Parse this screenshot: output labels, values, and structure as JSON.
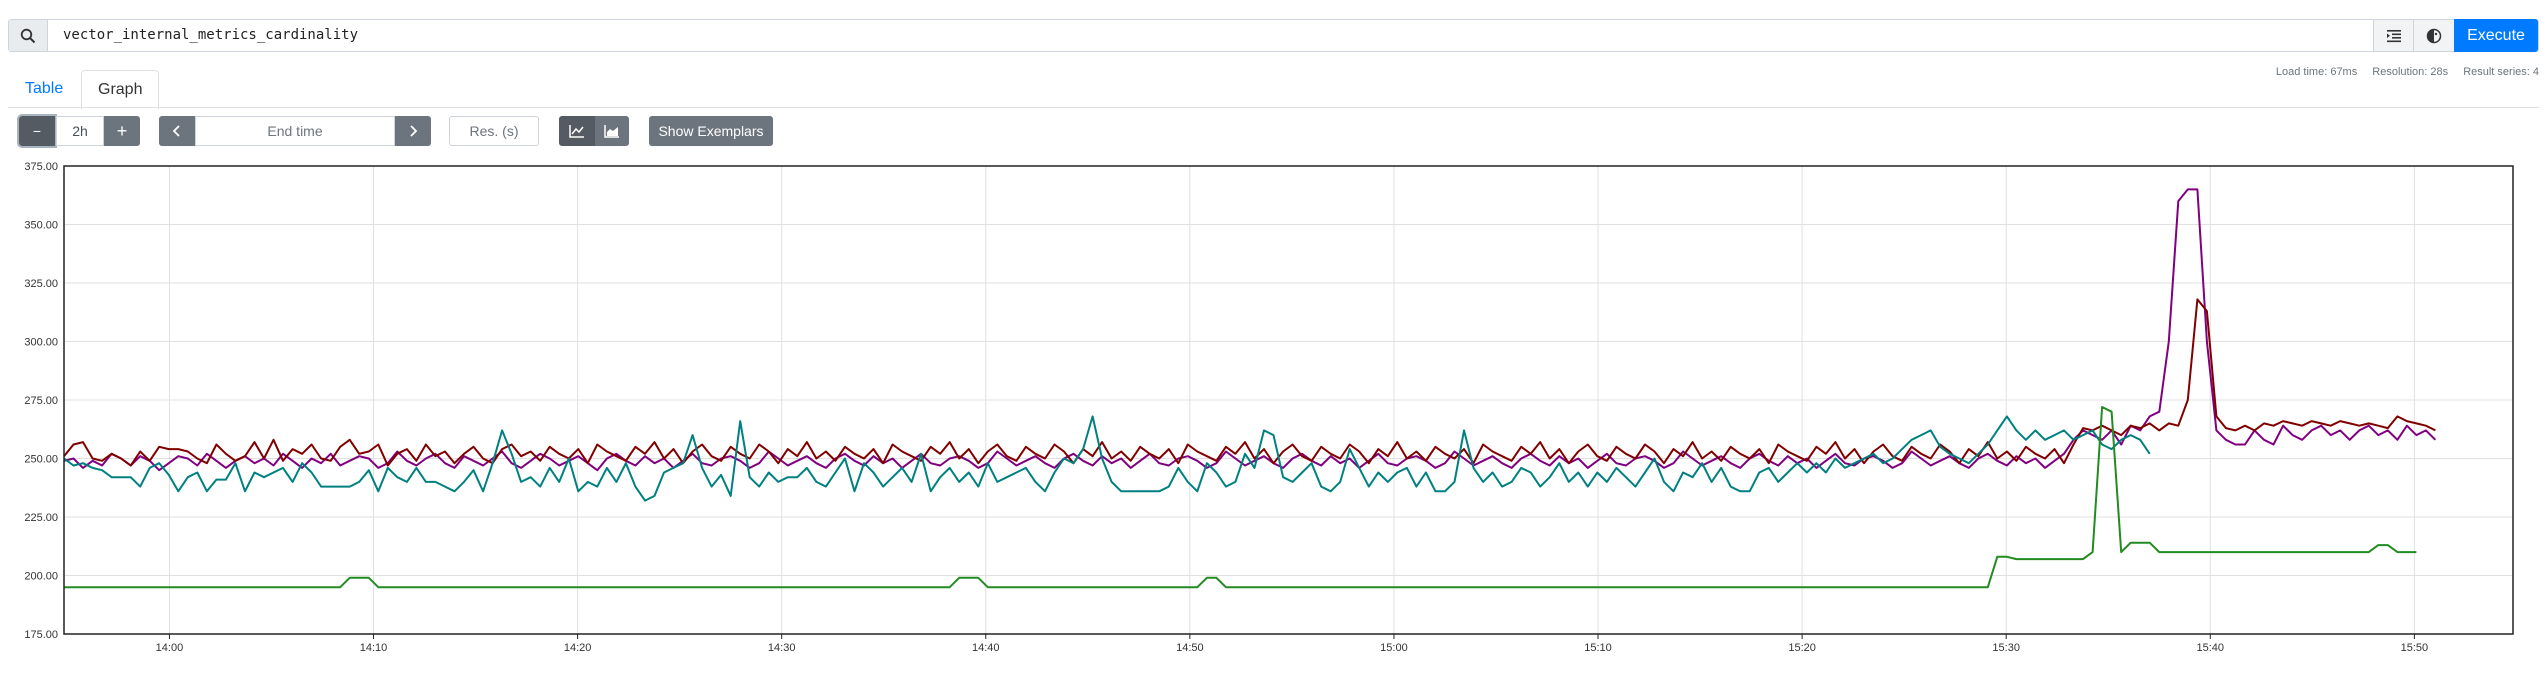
{
  "query": {
    "value": "vector_internal_metrics_cardinality"
  },
  "toolbar": {
    "execute_label": "Execute"
  },
  "tabs": [
    {
      "label": "Table"
    },
    {
      "label": "Graph"
    }
  ],
  "stats": {
    "load_time": "Load time: 67ms",
    "resolution": "Resolution: 28s",
    "result_series": "Result series: 4"
  },
  "controls": {
    "range_minus": "−",
    "range_value": "2h",
    "range_plus": "+",
    "end_time_placeholder": "End time",
    "resolution_placeholder": "Res. (s)",
    "show_exemplars": "Show Exemplars"
  },
  "icons": {
    "search": "search-icon",
    "format": "format-icon",
    "theme": "theme-icon",
    "back": "chevron-left-icon",
    "forward": "chevron-right-icon",
    "lines": "line-chart-icon",
    "stacked": "stacked-chart-icon"
  },
  "chart_data": {
    "type": "line",
    "ylim": [
      175,
      375
    ],
    "yticks": [
      "375.00",
      "350.00",
      "325.00",
      "300.00",
      "275.00",
      "250.00",
      "225.00",
      "200.00",
      "175.00"
    ],
    "xticks": [
      "14:00",
      "14:10",
      "14:20",
      "14:30",
      "14:40",
      "14:50",
      "15:00",
      "15:10",
      "15:20",
      "15:30",
      "15:40",
      "15:50"
    ],
    "xrange": [
      "13:54:50",
      "15:54:50"
    ],
    "grid": true,
    "legend": "none",
    "series": [
      {
        "color": "#800080",
        "t0": "13:54:50",
        "step_s": 28,
        "values": [
          249,
          250,
          246,
          249,
          247,
          252,
          250,
          247,
          251,
          249,
          245,
          248,
          251,
          250,
          247,
          252,
          249,
          246,
          249,
          251,
          248,
          250,
          247,
          252,
          249,
          246,
          250,
          248,
          252,
          247,
          249,
          251,
          250,
          246,
          248,
          253,
          249,
          247,
          250,
          252,
          248,
          246,
          251,
          249,
          247,
          250,
          253,
          248,
          246,
          249,
          252,
          250,
          247,
          249,
          251,
          248,
          245,
          250,
          252,
          249,
          247,
          251,
          248,
          250,
          246,
          249,
          252,
          248,
          247,
          250,
          251,
          249,
          246,
          248,
          253,
          250,
          247,
          249,
          251,
          248,
          246,
          250,
          252,
          249,
          247,
          251,
          248,
          250,
          246,
          249,
          252,
          248,
          247,
          250,
          251,
          249,
          246,
          248,
          253,
          250,
          247,
          249,
          251,
          248,
          246,
          250,
          252,
          249,
          247,
          251,
          248,
          250,
          246,
          249,
          252,
          248,
          247,
          250,
          251,
          249,
          246,
          248,
          253,
          250,
          247,
          249,
          251,
          248,
          246,
          250,
          252,
          249,
          247,
          251,
          248,
          250,
          246,
          249,
          252,
          248,
          247,
          250,
          251,
          249,
          246,
          248,
          253,
          250,
          247,
          249,
          251,
          248,
          246,
          250,
          252,
          249,
          247,
          251,
          248,
          250,
          246,
          249,
          252,
          248,
          247,
          250,
          251,
          249,
          246,
          248,
          253,
          250,
          247,
          249,
          251,
          248,
          246,
          250,
          252,
          249,
          247,
          251,
          248,
          250,
          246,
          249,
          252,
          248,
          247,
          250,
          251,
          249,
          246,
          248,
          253,
          250,
          247,
          249,
          251,
          248,
          246,
          250,
          252,
          249,
          247,
          251,
          248,
          250,
          246,
          249,
          252,
          258,
          262,
          260,
          258,
          262,
          256,
          264,
          262,
          268,
          270,
          300,
          360,
          365,
          365,
          300,
          262,
          258,
          256,
          256,
          262,
          258,
          256,
          264,
          260,
          258,
          262,
          264,
          260,
          262,
          258,
          262,
          264,
          260,
          262,
          258,
          264,
          260,
          262,
          258
        ]
      },
      {
        "color": "#800000",
        "t0": "13:54:50",
        "step_s": 28,
        "values": [
          251,
          256,
          257,
          250,
          249,
          252,
          250,
          247,
          253,
          249,
          255,
          254,
          254,
          253,
          250,
          248,
          256,
          252,
          249,
          251,
          257,
          250,
          258,
          249,
          254,
          252,
          256,
          250,
          249,
          255,
          258,
          252,
          253,
          256,
          247,
          252,
          254,
          249,
          256,
          251,
          253,
          248,
          252,
          255,
          250,
          248,
          254,
          256,
          251,
          253,
          249,
          255,
          252,
          250,
          254,
          248,
          256,
          253,
          251,
          249,
          255,
          252,
          257,
          250,
          254,
          248,
          253,
          256,
          251,
          249,
          255,
          252,
          250,
          256,
          253,
          248,
          254,
          251,
          257,
          250,
          253,
          249,
          255,
          252,
          250,
          254,
          248,
          256,
          253,
          251,
          249,
          255,
          252,
          257,
          250,
          254,
          248,
          253,
          256,
          251,
          249,
          255,
          252,
          250,
          256,
          253,
          248,
          254,
          251,
          257,
          250,
          253,
          249,
          255,
          252,
          250,
          254,
          248,
          256,
          253,
          251,
          249,
          255,
          252,
          257,
          250,
          254,
          248,
          253,
          256,
          251,
          249,
          255,
          252,
          250,
          256,
          253,
          248,
          254,
          251,
          257,
          250,
          253,
          249,
          255,
          252,
          250,
          254,
          248,
          256,
          253,
          251,
          249,
          255,
          252,
          257,
          250,
          254,
          248,
          253,
          256,
          251,
          249,
          255,
          252,
          250,
          256,
          253,
          248,
          254,
          251,
          257,
          250,
          253,
          249,
          255,
          252,
          250,
          254,
          248,
          256,
          253,
          251,
          249,
          255,
          252,
          257,
          250,
          254,
          248,
          253,
          256,
          251,
          249,
          255,
          252,
          250,
          256,
          253,
          248,
          254,
          251,
          257,
          250,
          253,
          249,
          255,
          252,
          250,
          254,
          248,
          256,
          263,
          262,
          264,
          262,
          260,
          264,
          263,
          265,
          262,
          265,
          264,
          275,
          318,
          313,
          268,
          263,
          262,
          264,
          262,
          265,
          264,
          266,
          265,
          264,
          266,
          265,
          264,
          266,
          265,
          264,
          265,
          264,
          263,
          268,
          266,
          265,
          264,
          262
        ]
      },
      {
        "color": "#008080",
        "t0": "13:54:50",
        "step_s": 28,
        "values": [
          250,
          247,
          248,
          246,
          245,
          242,
          242,
          242,
          238,
          246,
          248,
          243,
          236,
          242,
          244,
          236,
          241,
          241,
          248,
          236,
          244,
          242,
          244,
          246,
          240,
          248,
          244,
          238,
          238,
          238,
          238,
          240,
          245,
          236,
          246,
          242,
          240,
          246,
          240,
          240,
          238,
          236,
          240,
          245,
          236,
          248,
          262,
          252,
          240,
          242,
          238,
          246,
          240,
          250,
          236,
          240,
          238,
          246,
          240,
          248,
          238,
          232,
          234,
          244,
          246,
          248,
          260,
          246,
          238,
          243,
          234,
          266,
          242,
          238,
          244,
          240,
          242,
          242,
          246,
          240,
          238,
          244,
          250,
          236,
          248,
          244,
          238,
          242,
          246,
          240,
          252,
          236,
          242,
          246,
          240,
          244,
          238,
          248,
          240,
          242,
          244,
          246,
          240,
          236,
          244,
          250,
          248,
          254,
          268,
          250,
          240,
          236,
          236,
          236,
          236,
          236,
          238,
          246,
          240,
          236,
          248,
          244,
          238,
          240,
          252,
          246,
          262,
          260,
          242,
          240,
          244,
          248,
          238,
          236,
          240,
          254,
          246,
          238,
          244,
          240,
          244,
          246,
          238,
          244,
          236,
          236,
          240,
          262,
          246,
          240,
          244,
          238,
          240,
          246,
          244,
          238,
          242,
          248,
          240,
          244,
          238,
          244,
          240,
          246,
          242,
          238,
          244,
          250,
          240,
          236,
          244,
          242,
          248,
          240,
          246,
          238,
          236,
          236,
          244,
          246,
          240,
          244,
          248,
          244,
          248,
          244,
          250,
          246,
          248,
          250,
          252,
          248,
          250,
          254,
          258,
          260,
          262,
          255,
          252,
          250,
          248,
          252,
          256,
          262,
          268,
          262,
          258,
          262,
          258,
          260,
          262,
          258,
          260,
          262,
          256,
          254,
          258,
          260,
          258,
          252
        ]
      },
      {
        "color": "#228b22",
        "t0": "13:54:50",
        "step_s": 28,
        "values": [
          195,
          195,
          195,
          195,
          195,
          195,
          195,
          195,
          195,
          195,
          195,
          195,
          195,
          195,
          195,
          195,
          195,
          195,
          195,
          195,
          195,
          195,
          195,
          195,
          195,
          195,
          195,
          195,
          195,
          195,
          199,
          199,
          199,
          195,
          195,
          195,
          195,
          195,
          195,
          195,
          195,
          195,
          195,
          195,
          195,
          195,
          195,
          195,
          195,
          195,
          195,
          195,
          195,
          195,
          195,
          195,
          195,
          195,
          195,
          195,
          195,
          195,
          195,
          195,
          195,
          195,
          195,
          195,
          195,
          195,
          195,
          195,
          195,
          195,
          195,
          195,
          195,
          195,
          195,
          195,
          195,
          195,
          195,
          195,
          195,
          195,
          195,
          195,
          195,
          195,
          195,
          195,
          195,
          195,
          199,
          199,
          199,
          195,
          195,
          195,
          195,
          195,
          195,
          195,
          195,
          195,
          195,
          195,
          195,
          195,
          195,
          195,
          195,
          195,
          195,
          195,
          195,
          195,
          195,
          195,
          199,
          199,
          195,
          195,
          195,
          195,
          195,
          195,
          195,
          195,
          195,
          195,
          195,
          195,
          195,
          195,
          195,
          195,
          195,
          195,
          195,
          195,
          195,
          195,
          195,
          195,
          195,
          195,
          195,
          195,
          195,
          195,
          195,
          195,
          195,
          195,
          195,
          195,
          195,
          195,
          195,
          195,
          195,
          195,
          195,
          195,
          195,
          195,
          195,
          195,
          195,
          195,
          195,
          195,
          195,
          195,
          195,
          195,
          195,
          195,
          195,
          195,
          195,
          195,
          195,
          195,
          195,
          195,
          195,
          195,
          195,
          195,
          195,
          195,
          195,
          195,
          195,
          195,
          195,
          195,
          195,
          195,
          195,
          208,
          208,
          207,
          207,
          207,
          207,
          207,
          207,
          207,
          207,
          210,
          272,
          270,
          210,
          214,
          214,
          214,
          210,
          210,
          210,
          210,
          210,
          210,
          210,
          210,
          210,
          210,
          210,
          210,
          210,
          210,
          210,
          210,
          210,
          210,
          210,
          210,
          210,
          210,
          210,
          213,
          213,
          210,
          210,
          210
        ]
      }
    ]
  }
}
